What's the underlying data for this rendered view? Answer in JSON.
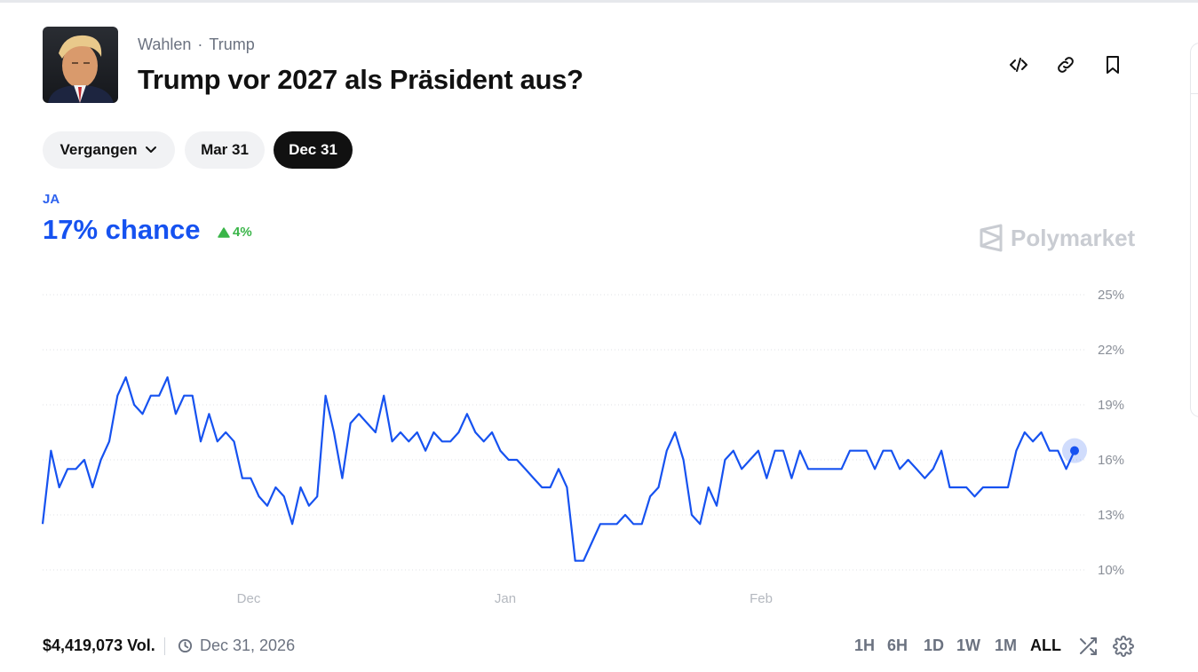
{
  "header": {
    "breadcrumb": [
      "Wahlen",
      "Trump"
    ],
    "breadcrumb_sep": "·",
    "title": "Trump vor 2027 als Präsident aus?"
  },
  "actions": [
    {
      "name": "embed-icon"
    },
    {
      "name": "link-icon"
    },
    {
      "name": "bookmark-icon"
    }
  ],
  "filters": {
    "dropdown_label": "Vergangen",
    "tabs": [
      "Mar 31",
      "Dec 31"
    ],
    "active_tab": "Dec 31"
  },
  "outcome": {
    "label": "JA",
    "chance": "17% chance",
    "delta": "4%",
    "delta_direction": "up"
  },
  "watermark": "Polymarket",
  "colors": {
    "line": "#1652f0",
    "up": "#3ab549",
    "grid": "#dfe2e6"
  },
  "chart_data": {
    "type": "line",
    "y_ticks": [
      "25%",
      "22%",
      "19%",
      "16%",
      "13%",
      "10%"
    ],
    "ylim": [
      10,
      25
    ],
    "x_ticks": [
      "Dec",
      "Jan",
      "Feb"
    ],
    "series": [
      {
        "values": [
          12.5,
          16.5,
          14.5,
          15.5,
          15.5,
          16,
          14.5,
          16,
          17,
          19.5,
          20.5,
          19,
          18.5,
          19.5,
          19.5,
          20.5,
          18.5,
          19.5,
          19.5,
          17,
          18.5,
          17,
          17.5,
          17,
          15,
          15,
          14,
          13.5,
          14.5,
          14,
          12.5,
          14.5,
          13.5,
          14,
          19.5,
          17.5,
          15,
          18,
          18.5,
          18,
          17.5,
          19.5,
          17,
          17.5,
          17,
          17.5,
          16.5,
          17.5,
          17,
          17,
          17.5,
          18.5,
          17.5,
          17,
          17.5,
          16.5,
          16,
          16,
          15.5,
          15,
          14.5,
          14.5,
          15.5,
          14.5,
          10.5,
          10.5,
          11.5,
          12.5,
          12.5,
          12.5,
          13,
          12.5,
          12.5,
          14,
          14.5,
          16.5,
          17.5,
          16,
          13,
          12.5,
          14.5,
          13.5,
          16,
          16.5,
          15.5,
          16,
          16.5,
          15,
          16.5,
          16.5,
          15,
          16.5,
          15.5,
          15.5,
          15.5,
          15.5,
          15.5,
          16.5,
          16.5,
          16.5,
          15.5,
          16.5,
          16.5,
          15.5,
          16,
          15.5,
          15,
          15.5,
          16.5,
          14.5,
          14.5,
          14.5,
          14,
          14.5,
          14.5,
          14.5,
          14.5,
          16.5,
          17.5,
          17,
          17.5,
          16.5,
          16.5,
          15.5,
          16.5
        ]
      }
    ],
    "last_value": 16.5
  },
  "footer": {
    "volume": "$4,419,073 Vol.",
    "end_date": "Dec 31, 2026",
    "ranges": [
      "1H",
      "6H",
      "1D",
      "1W",
      "1M",
      "ALL"
    ],
    "active_range": "ALL"
  }
}
